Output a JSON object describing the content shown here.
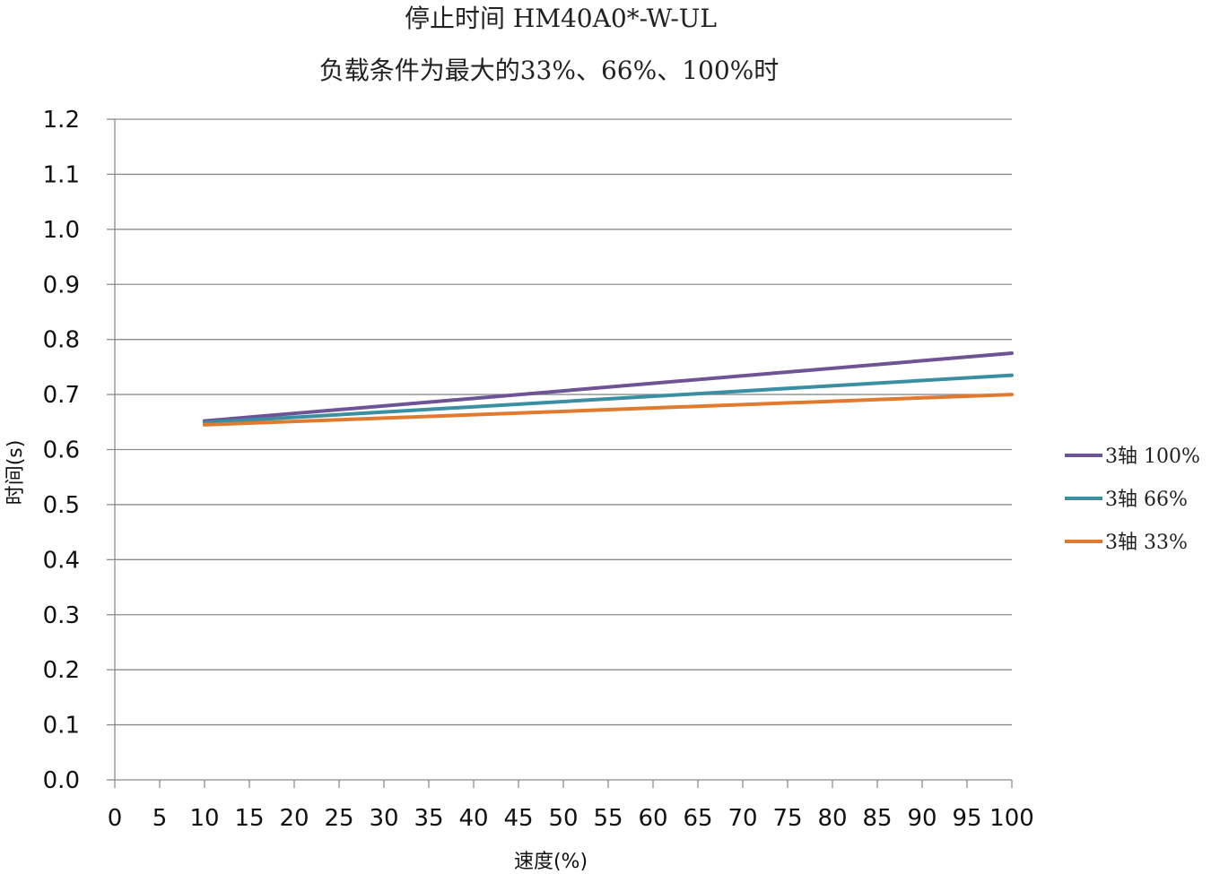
{
  "chart_data": {
    "type": "line",
    "title": "停止时间 HM40A0*-W-UL",
    "subtitle": "负载条件为最大的33%、66%、100%时",
    "xlabel": "速度(%)",
    "ylabel": "时间(s)",
    "xlim": [
      0,
      100
    ],
    "ylim": [
      0.0,
      1.2
    ],
    "x_ticks": [
      "0",
      "5",
      "10",
      "15",
      "20",
      "25",
      "30",
      "35",
      "40",
      "45",
      "50",
      "55",
      "60",
      "65",
      "70",
      "75",
      "80",
      "85",
      "90",
      "95",
      "100"
    ],
    "y_ticks": [
      "0.0",
      "0.1",
      "0.2",
      "0.3",
      "0.4",
      "0.5",
      "0.6",
      "0.7",
      "0.8",
      "0.9",
      "1.0",
      "1.1",
      "1.2"
    ],
    "grid": "horizontal",
    "legend_position": "right",
    "x": [
      10,
      100
    ],
    "series": [
      {
        "name": "3轴 100%",
        "values": [
          0.652,
          0.775
        ],
        "color": "#6E5495"
      },
      {
        "name": "3轴 66%",
        "values": [
          0.649,
          0.735
        ],
        "color": "#3A8FA3"
      },
      {
        "name": "3轴 33%",
        "values": [
          0.645,
          0.7
        ],
        "color": "#E07A2E"
      }
    ]
  }
}
